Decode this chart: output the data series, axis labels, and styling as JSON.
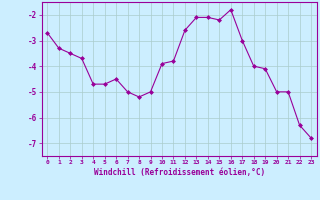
{
  "x": [
    0,
    1,
    2,
    3,
    4,
    5,
    6,
    7,
    8,
    9,
    10,
    11,
    12,
    13,
    14,
    15,
    16,
    17,
    18,
    19,
    20,
    21,
    22,
    23
  ],
  "y": [
    -2.7,
    -3.3,
    -3.5,
    -3.7,
    -4.7,
    -4.7,
    -4.5,
    -5.0,
    -5.2,
    -5.0,
    -3.9,
    -3.8,
    -2.6,
    -2.1,
    -2.1,
    -2.2,
    -1.8,
    -3.0,
    -4.0,
    -4.1,
    -5.0,
    -5.0,
    -6.3,
    -6.8
  ],
  "line_color": "#990099",
  "marker": "D",
  "marker_size": 2,
  "bg_color": "#cceeff",
  "grid_color": "#aacccc",
  "xlabel": "Windchill (Refroidissement éolien,°C)",
  "xlabel_color": "#990099",
  "ylabel_ticks": [
    -7,
    -6,
    -5,
    -4,
    -3,
    -2
  ],
  "ylim": [
    -7.5,
    -1.5
  ],
  "xlim": [
    -0.5,
    23.5
  ],
  "xtick_labels": [
    "0",
    "1",
    "2",
    "3",
    "4",
    "5",
    "6",
    "7",
    "8",
    "9",
    "10",
    "11",
    "12",
    "13",
    "14",
    "15",
    "16",
    "17",
    "18",
    "19",
    "20",
    "21",
    "22",
    "23"
  ],
  "spine_color": "#990099",
  "tick_color": "#990099"
}
